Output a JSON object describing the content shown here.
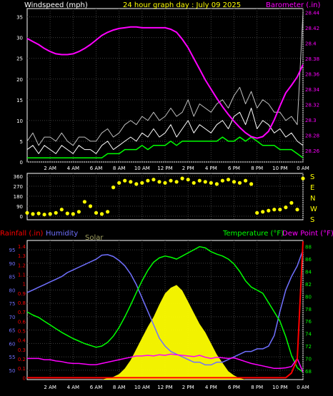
{
  "title": "24 hour graph day : July 09 2025",
  "colors": {
    "windspeed": "#ffffff",
    "gust": "#c0c0c0",
    "wind_avg": "#00ff00",
    "barometer": "#ff00ff",
    "direction": "#ffff00",
    "rainfall": "#ff0000",
    "humidity": "#7070ff",
    "solar": "#ffff00",
    "temperature": "#00ff00",
    "dewpoint": "#ff00ff",
    "axis": "#ffffff",
    "grid": "#404040"
  },
  "time_ticks": [
    "2 AM",
    "4 AM",
    "6 AM",
    "8 AM",
    "10 AM",
    "12 PM",
    "2 PM",
    "4 PM",
    "6 PM",
    "8 PM",
    "10 PM",
    "0 AM"
  ],
  "chart_data": [
    {
      "type": "line",
      "name": "wind-barometer",
      "ylabel_left": "Windspeed (mph)",
      "ylabel_right": "Barometer (.in)",
      "ylim_left": [
        0,
        37
      ],
      "ylim_right": [
        28.245,
        28.445
      ],
      "y_ticks_left": [
        "0",
        "5",
        "10",
        "15",
        "20",
        "25",
        "30",
        "35"
      ],
      "y_ticks_right": [
        "28.26",
        "28.28",
        "28.3",
        "28.32",
        "28.34",
        "28.36",
        "28.38",
        "28.4",
        "28.42",
        "28.44"
      ],
      "x_hours": [
        0,
        0.5,
        1,
        1.5,
        2,
        2.5,
        3,
        3.5,
        4,
        4.5,
        5,
        5.5,
        6,
        6.5,
        7,
        7.5,
        8,
        8.5,
        9,
        9.5,
        10,
        10.5,
        11,
        11.5,
        12,
        12.5,
        13,
        13.5,
        14,
        14.5,
        15,
        15.5,
        16,
        16.5,
        17,
        17.5,
        18,
        18.5,
        19,
        19.5,
        20,
        20.5,
        21,
        21.5,
        22,
        22.5,
        23,
        23.5,
        24
      ],
      "series": [
        {
          "name": "Windspeed",
          "values": [
            3,
            4,
            2,
            4,
            3,
            2,
            4,
            3,
            2,
            4,
            3,
            3,
            2,
            4,
            5,
            3,
            4,
            5,
            6,
            5,
            7,
            6,
            8,
            6,
            7,
            9,
            6,
            8,
            10,
            7,
            9,
            8,
            7,
            9,
            10,
            8,
            11,
            12,
            9,
            13,
            8,
            10,
            9,
            7,
            8,
            6,
            7,
            5,
            4
          ]
        },
        {
          "name": "Gust",
          "values": [
            5,
            7,
            4,
            6,
            6,
            5,
            7,
            5,
            4,
            6,
            6,
            5,
            5,
            7,
            8,
            6,
            7,
            9,
            10,
            9,
            11,
            10,
            12,
            10,
            11,
            13,
            11,
            12,
            15,
            11,
            14,
            13,
            12,
            14,
            15,
            13,
            16,
            18,
            14,
            17,
            13,
            15,
            14,
            12,
            12,
            10,
            11,
            9,
            36
          ]
        },
        {
          "name": "Wind average",
          "values": [
            1,
            1,
            1,
            1,
            1,
            1,
            1,
            1,
            1,
            1,
            1,
            1,
            1,
            1,
            2,
            2,
            2,
            3,
            3,
            3,
            4,
            3,
            4,
            4,
            4,
            5,
            4,
            5,
            5,
            5,
            5,
            5,
            5,
            5,
            6,
            5,
            5,
            6,
            5,
            6,
            5,
            4,
            4,
            4,
            3,
            3,
            3,
            2,
            1
          ]
        },
        {
          "name": "Barometer",
          "values": [
            28.406,
            28.402,
            28.398,
            28.393,
            28.389,
            28.386,
            28.385,
            28.385,
            28.386,
            28.389,
            28.393,
            28.398,
            28.404,
            28.41,
            28.414,
            28.417,
            28.419,
            28.42,
            28.421,
            28.421,
            28.42,
            28.42,
            28.42,
            28.42,
            28.42,
            28.418,
            28.414,
            28.405,
            28.394,
            28.38,
            28.366,
            28.352,
            28.34,
            28.328,
            28.317,
            28.307,
            28.298,
            28.29,
            28.283,
            28.278,
            28.276,
            28.278,
            28.285,
            28.3,
            28.318,
            28.335,
            28.345,
            28.356,
            28.372
          ]
        }
      ]
    },
    {
      "type": "scatter",
      "name": "wind-direction",
      "ylim": [
        0,
        360
      ],
      "y_ticks": [
        "0",
        "90",
        "180",
        "270",
        "360"
      ],
      "compass": [
        "S",
        "E",
        "N",
        "W",
        "S"
      ],
      "x_hours": [
        0,
        0.5,
        1,
        1.5,
        2,
        2.5,
        3,
        3.5,
        4,
        4.5,
        5,
        5.5,
        6,
        6.5,
        7,
        7.5,
        8,
        8.5,
        9,
        9.5,
        10,
        10.5,
        11,
        11.5,
        12,
        12.5,
        13,
        13.5,
        14,
        14.5,
        15,
        15.5,
        16,
        16.5,
        17,
        17.5,
        18,
        18.5,
        19,
        19.5,
        20,
        20.5,
        21,
        21.5,
        22,
        22.5,
        23,
        23.5,
        24
      ],
      "values": [
        30,
        20,
        25,
        15,
        20,
        30,
        60,
        25,
        20,
        40,
        130,
        90,
        30,
        20,
        40,
        260,
        300,
        320,
        310,
        290,
        300,
        320,
        330,
        310,
        300,
        320,
        310,
        340,
        330,
        300,
        320,
        310,
        300,
        290,
        320,
        330,
        310,
        300,
        320,
        290,
        30,
        40,
        50,
        60,
        60,
        80,
        120,
        60,
        340
      ]
    },
    {
      "type": "line",
      "name": "temperature-humidity",
      "ylabel_left": "Rainfall (.in)",
      "ylabel_humidity": "Humidity",
      "ylabel_solar": "Solar",
      "ylabel_right": "Temperature (°F)",
      "ylabel_right2": "Dew Point (°F)",
      "ylim_humidity": [
        46.5,
        98.5
      ],
      "ylim_rain": [
        -0.02,
        1.46
      ],
      "ylim_temp": [
        66.6,
        89
      ],
      "y_ticks_humidity": [
        "50",
        "55",
        "60",
        "65",
        "70",
        "75",
        "80",
        "85",
        "90",
        "95"
      ],
      "y_ticks_rain": [
        "0",
        "0.1",
        "0.2",
        "0.3",
        "0.4",
        "0.5",
        "0.6",
        "0.7",
        "0.8",
        "0.9",
        "1",
        "1.1",
        "1.2",
        "1.3",
        "1.4"
      ],
      "y_ticks_temp": [
        "68",
        "70",
        "72",
        "74",
        "76",
        "78",
        "80",
        "82",
        "84",
        "86",
        "88"
      ],
      "x_hours": [
        0,
        0.5,
        1,
        1.5,
        2,
        2.5,
        3,
        3.5,
        4,
        4.5,
        5,
        5.5,
        6,
        6.5,
        7,
        7.5,
        8,
        8.5,
        9,
        9.5,
        10,
        10.5,
        11,
        11.5,
        12,
        12.5,
        13,
        13.5,
        14,
        14.5,
        15,
        15.5,
        16,
        16.5,
        17,
        17.5,
        18,
        18.5,
        19,
        19.5,
        20,
        20.5,
        21,
        21.5,
        22,
        22.5,
        23,
        23.5,
        24
      ],
      "series": [
        {
          "name": "Temperature",
          "values": [
            77.5,
            77,
            76.6,
            76,
            75.4,
            74.8,
            74.2,
            73.7,
            73.2,
            72.8,
            72.4,
            72.1,
            71.8,
            72,
            72.6,
            73.6,
            75,
            76.7,
            78.6,
            80.6,
            82.5,
            84.2,
            85.5,
            86.2,
            86.5,
            86.3,
            86,
            86.5,
            87,
            87.5,
            88,
            87.8,
            87.2,
            86.8,
            86.5,
            86,
            85.2,
            84,
            82.5,
            81.5,
            81,
            80.5,
            79,
            77.5,
            76,
            73.5,
            70.5,
            68.5,
            67.8
          ]
        },
        {
          "name": "Humidity",
          "values": [
            79,
            80,
            81,
            82,
            83,
            84,
            85,
            86.5,
            87.5,
            88.5,
            89.5,
            90.5,
            91.5,
            93,
            93.2,
            92.5,
            91,
            89,
            86,
            82,
            77,
            72,
            67,
            62,
            59,
            57,
            56,
            55,
            54,
            53,
            53,
            52,
            52,
            53,
            53,
            54,
            55,
            56,
            57,
            57,
            58,
            58,
            59,
            63,
            72,
            80,
            85,
            89,
            95
          ]
        },
        {
          "name": "Dew Point",
          "values": [
            70,
            70,
            70,
            69.8,
            69.8,
            69.6,
            69.5,
            69.3,
            69.2,
            69.2,
            69.1,
            69,
            69,
            69.2,
            69.4,
            69.6,
            69.8,
            70,
            70.2,
            70.4,
            70.4,
            70.5,
            70.4,
            70.6,
            70.5,
            70.7,
            70.6,
            70.5,
            70.4,
            70.3,
            70.5,
            70.2,
            70,
            70.2,
            70.1,
            70,
            70.1,
            69.8,
            69.5,
            69.2,
            69,
            68.8,
            68.6,
            68.4,
            68.4,
            68.5,
            68.7,
            70,
            67.8
          ]
        },
        {
          "name": "Solar",
          "values": [
            0,
            0,
            0,
            0,
            0,
            0,
            0,
            0,
            0,
            0,
            0,
            0,
            0,
            0,
            1,
            2,
            4,
            8,
            14,
            22,
            30,
            38,
            45,
            54,
            62,
            66,
            68,
            64,
            56,
            48,
            40,
            34,
            26,
            18,
            12,
            6,
            3,
            1,
            0,
            0,
            0,
            0,
            0,
            0,
            0,
            0,
            0,
            0,
            0
          ]
        },
        {
          "name": "Rainfall",
          "values": [
            0,
            0,
            0,
            0,
            0,
            0,
            0,
            0,
            0,
            0,
            0,
            0,
            0,
            0,
            0,
            0,
            0,
            0,
            0,
            0,
            0,
            0,
            0,
            0,
            0,
            0,
            0,
            0,
            0,
            0,
            0,
            0,
            0,
            0,
            0,
            0,
            0,
            0,
            0,
            0,
            0,
            0,
            0,
            0,
            0,
            0,
            0.05,
            0.2,
            1.45
          ]
        }
      ]
    }
  ]
}
